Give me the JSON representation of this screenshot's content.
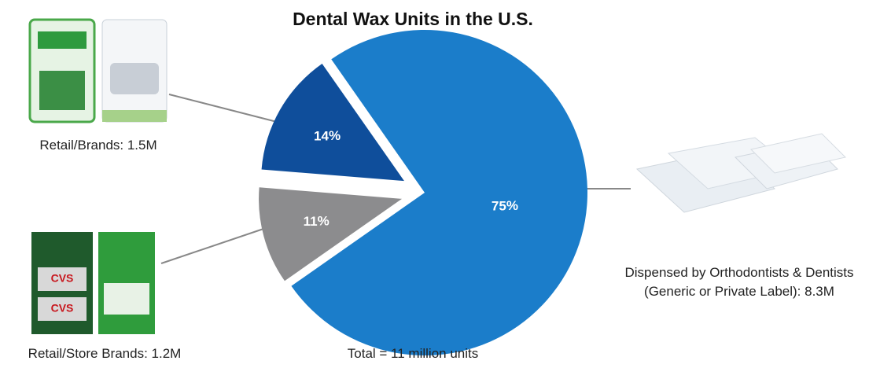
{
  "chart_data": {
    "type": "pie",
    "title": "Dental Wax Units in the U.S.",
    "categories": [
      "Dispensed by Orthodontists & Dentists\n(Generic or Private Label): 8.3M",
      "Retail/Store Brands: 1.2M",
      "Retail/Brands: 1.5M"
    ],
    "values": [
      75,
      11,
      14
    ],
    "colors": [
      "#1b7dca",
      "#8c8c8e",
      "#0f4e9b"
    ],
    "annotation": "Total = 11 million units"
  }
}
